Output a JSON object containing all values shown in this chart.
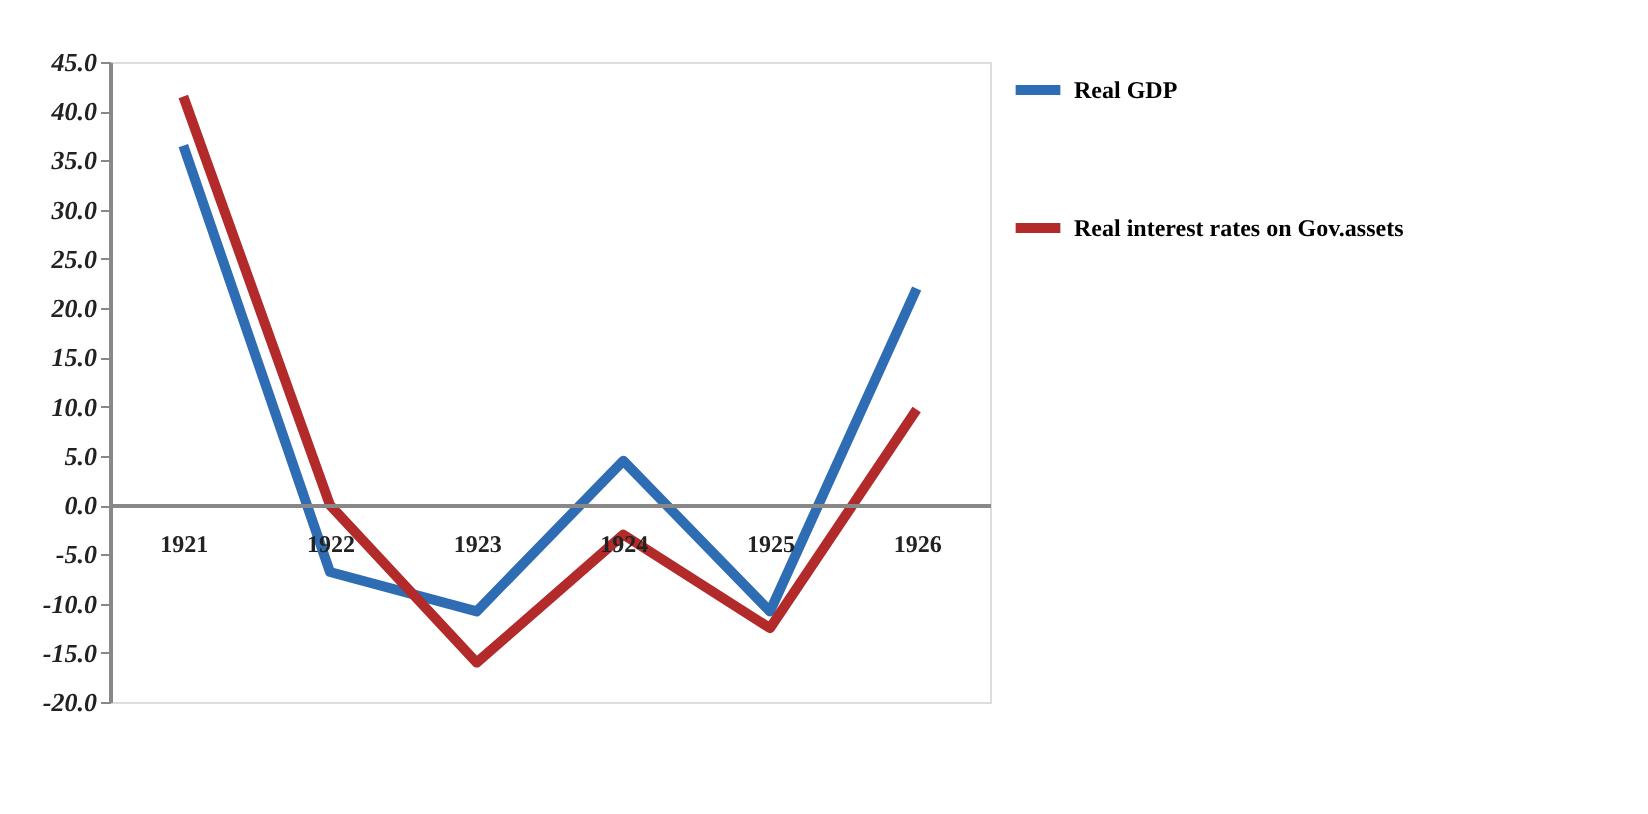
{
  "chart_data": {
    "type": "line",
    "categories": [
      "1921",
      "1922",
      "1923",
      "1924",
      "1925",
      "1926"
    ],
    "series": [
      {
        "name": "Real GDP",
        "color": "#2e6db4",
        "values": [
          36.5,
          -6.8,
          -10.8,
          4.5,
          -10.8,
          22.0
        ]
      },
      {
        "name": "Real interest rates on Gov.assets",
        "color": "#b22a2a",
        "values": [
          41.5,
          0.0,
          -16.0,
          -3.0,
          -12.5,
          9.7
        ]
      }
    ],
    "ylim": [
      -20,
      45
    ],
    "yticks": [
      {
        "value": -20,
        "label": "-20.0"
      },
      {
        "value": -15,
        "label": "-15.0"
      },
      {
        "value": -10,
        "label": "-10.0"
      },
      {
        "value": -5,
        "label": "-5.0"
      },
      {
        "value": 0,
        "label": "0.0"
      },
      {
        "value": 5,
        "label": "5.0"
      },
      {
        "value": 10,
        "label": "10.0"
      },
      {
        "value": 15,
        "label": "15.0"
      },
      {
        "value": 20,
        "label": "20.0"
      },
      {
        "value": 25,
        "label": "25.0"
      },
      {
        "value": 30,
        "label": "30.0"
      },
      {
        "value": 35,
        "label": "35.0"
      },
      {
        "value": 40,
        "label": "40.0"
      },
      {
        "value": 45,
        "label": "45.0"
      }
    ],
    "grid": false,
    "legend": "right",
    "marker": "none",
    "line_style": "solid"
  }
}
